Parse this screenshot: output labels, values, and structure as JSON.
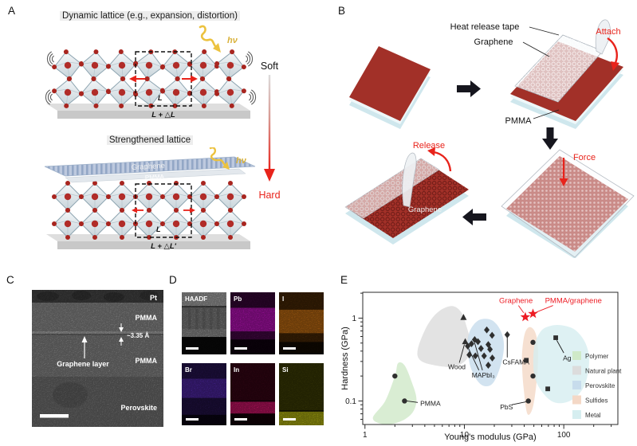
{
  "colors": {
    "accent_red": "#e8231b",
    "star_red": "#ed1c24",
    "sample_red": "#a23028",
    "substrate_blue": "#cfe7ed",
    "atom_red": "#b12c28",
    "graphene_sheet_blue": "#b9c6dc"
  },
  "panel_a": {
    "label": "A",
    "title_top": "Dynamic lattice (e.g., expansion, distortion)",
    "title_bottom": "Strengthened lattice",
    "soft": "Soft",
    "hard": "Hard",
    "hv": "hν",
    "graphene_label": "Graphene",
    "pmma_label": "PMMA",
    "cell_l": "L",
    "cell_l2": "L",
    "expansion_top": "L + △L",
    "expansion_bottom": "L + △L'"
  },
  "panel_b": {
    "label": "B",
    "heat_release_tape": "Heat release tape",
    "graphene": "Graphene",
    "pmma": "PMMA",
    "attach": "Attach",
    "force": "Force",
    "release": "Release",
    "graphene_film": "Graphene"
  },
  "panel_c": {
    "label": "C",
    "pt": "Pt",
    "pmma_top": "PMMA",
    "d_spacing": "~3.35 Å",
    "graphene_layer": "Graphene layer",
    "pmma_bottom": "PMMA",
    "perovskite": "Perovskite"
  },
  "panel_d": {
    "label": "D",
    "tiles": [
      {
        "label": "HAADF",
        "bg": "#141414",
        "cols": true,
        "bands": [
          {
            "y": 0,
            "h": 0.22,
            "c": "#c6c6c6",
            "o": 1
          },
          {
            "y": 0.22,
            "h": 0.025,
            "c": "#5e5e5e",
            "o": 1
          },
          {
            "y": 0.245,
            "h": 0.345,
            "c": "#9a9a9a",
            "o": 1
          },
          {
            "y": 0.59,
            "h": 0.13,
            "c": "#b0b0b0",
            "o": 1
          },
          {
            "y": 0.72,
            "h": 0.28,
            "c": "#0c0c0c",
            "o": 1
          }
        ]
      },
      {
        "label": "Pb",
        "bg": "#120212",
        "cols": false,
        "bands": [
          {
            "y": 0,
            "h": 0.25,
            "c": "#cc17cc",
            "o": 0.25
          },
          {
            "y": 0.25,
            "h": 0.38,
            "c": "#dd16dd",
            "o": 0.95
          },
          {
            "y": 0.63,
            "h": 0.13,
            "c": "#cc17cc",
            "o": 0.35
          }
        ]
      },
      {
        "label": "I",
        "bg": "#160d02",
        "cols": false,
        "bands": [
          {
            "y": 0,
            "h": 0.28,
            "c": "#dd7b14",
            "o": 0.3
          },
          {
            "y": 0.28,
            "h": 0.38,
            "c": "#e28016",
            "o": 0.95
          },
          {
            "y": 0.66,
            "h": 0.14,
            "c": "#dd7b14",
            "o": 0.3
          }
        ]
      },
      {
        "label": "Br",
        "bg": "#0c0617",
        "cols": false,
        "bands": [
          {
            "y": 0,
            "h": 0.25,
            "c": "#6a38da",
            "o": 0.35
          },
          {
            "y": 0.25,
            "h": 0.31,
            "c": "#6d36e2",
            "o": 0.8
          },
          {
            "y": 0.56,
            "h": 0.27,
            "c": "#6a38da",
            "o": 0.3
          }
        ]
      },
      {
        "label": "In",
        "bg": "#170209",
        "cols": false,
        "bands": [
          {
            "y": 0,
            "h": 0.6,
            "c": "#a81245",
            "o": 0.28
          },
          {
            "y": 0.62,
            "h": 0.19,
            "c": "#f0187b",
            "o": 0.95
          }
        ]
      },
      {
        "label": "Si",
        "bg": "#131302",
        "cols": false,
        "bands": [
          {
            "y": 0,
            "h": 0.76,
            "c": "#b9b911",
            "o": 0.3
          },
          {
            "y": 0.78,
            "h": 0.22,
            "c": "#d6d615",
            "o": 0.95
          }
        ]
      }
    ]
  },
  "panel_e": {
    "label": "E"
  },
  "chart_data": {
    "type": "scatter",
    "xlabel": "Young's modulus (GPa)",
    "ylabel": "Hardness (GPa)",
    "xscale": "log",
    "yscale": "log",
    "xlim": [
      0.95,
      350
    ],
    "ylim": [
      0.052,
      2.05
    ],
    "xticks": [
      1,
      10,
      100
    ],
    "yticks": [
      1,
      0.1
    ],
    "grid": false,
    "legend_position": "inside-right",
    "marker_color": "#2f2f2f",
    "star_color": "#ed1c24",
    "legend": [
      {
        "label": "Polymer",
        "color": "#cfe9c8"
      },
      {
        "label": "Natural plant",
        "color": "#dcdcdc"
      },
      {
        "label": "Perovskite",
        "color": "#c7dcec"
      },
      {
        "label": "Sulfides",
        "color": "#f4d8c6"
      },
      {
        "label": "Metal",
        "color": "#d6eef0"
      }
    ],
    "regions": [
      {
        "name": "Polymer",
        "color": "#cfe9c8",
        "points": [
          [
            1.2,
            0.062
          ],
          [
            1.6,
            0.1
          ],
          [
            2.0,
            0.2
          ],
          [
            2.15,
            0.285
          ],
          [
            2.5,
            0.27
          ],
          [
            2.95,
            0.17
          ],
          [
            3.3,
            0.105
          ],
          [
            3.0,
            0.072
          ],
          [
            2.3,
            0.057
          ],
          [
            1.6,
            0.052
          ]
        ]
      },
      {
        "name": "Natural plant",
        "color": "#dcdcdc",
        "points": [
          [
            3.4,
            0.42
          ],
          [
            4.2,
            0.8
          ],
          [
            5.5,
            1.2
          ],
          [
            7.5,
            1.4
          ],
          [
            9.3,
            1.18
          ],
          [
            10.5,
            0.8
          ],
          [
            11.5,
            0.5
          ],
          [
            10.8,
            0.33
          ],
          [
            8.0,
            0.26
          ],
          [
            5.0,
            0.27
          ],
          [
            3.6,
            0.31
          ]
        ]
      },
      {
        "name": "Perovskite",
        "color": "#c7dcec",
        "points": [
          [
            10.8,
            0.5
          ],
          [
            11.5,
            0.72
          ],
          [
            13.5,
            0.92
          ],
          [
            16.5,
            0.98
          ],
          [
            20.0,
            0.9
          ],
          [
            23.5,
            0.68
          ],
          [
            25.0,
            0.45
          ],
          [
            23.0,
            0.26
          ],
          [
            19.0,
            0.16
          ],
          [
            14.5,
            0.16
          ],
          [
            11.5,
            0.26
          ]
        ]
      },
      {
        "name": "Sulfides",
        "color": "#f4d8c6",
        "points": [
          [
            38.5,
            0.45
          ],
          [
            41,
            0.68
          ],
          [
            46,
            0.78
          ],
          [
            52,
            0.66
          ],
          [
            55,
            0.42
          ],
          [
            54,
            0.2
          ],
          [
            49,
            0.085
          ],
          [
            43,
            0.07
          ],
          [
            39.5,
            0.14
          ],
          [
            38,
            0.28
          ]
        ]
      },
      {
        "name": "Metal",
        "color": "#d6eef0",
        "points": [
          [
            50,
            0.42
          ],
          [
            58,
            0.68
          ],
          [
            72,
            0.8
          ],
          [
            95,
            0.82
          ],
          [
            130,
            0.72
          ],
          [
            165,
            0.5
          ],
          [
            180,
            0.3
          ],
          [
            160,
            0.15
          ],
          [
            115,
            0.1
          ],
          [
            75,
            0.1
          ],
          [
            52,
            0.18
          ]
        ]
      }
    ],
    "series": [
      {
        "name": "Polymer",
        "marker": "circle",
        "points": [
          [
            2.0,
            0.2
          ],
          [
            2.5,
            0.1
          ]
        ]
      },
      {
        "name": "Natural plant",
        "marker": "triangle",
        "points": [
          [
            9.8,
            1.02
          ],
          [
            10.2,
            0.52
          ]
        ]
      },
      {
        "name": "Perovskite MAPbI₃",
        "marker": "diamond",
        "points": [
          [
            16.8,
            0.72
          ],
          [
            19,
            0.62
          ],
          [
            12.7,
            0.55
          ],
          [
            13.7,
            0.52
          ],
          [
            11.8,
            0.49
          ],
          [
            10.8,
            0.46
          ],
          [
            17.4,
            0.48
          ],
          [
            14.7,
            0.43
          ],
          [
            18.1,
            0.42
          ],
          [
            11.2,
            0.36
          ],
          [
            12.9,
            0.35
          ],
          [
            15.8,
            0.35
          ],
          [
            19.1,
            0.33
          ],
          [
            17.4,
            0.27
          ]
        ]
      },
      {
        "name": "Perovskite CsFAMA",
        "marker": "diamond",
        "points": [
          [
            27,
            0.63
          ]
        ]
      },
      {
        "name": "Sulfides",
        "marker": "circle",
        "points": [
          [
            49,
            0.51
          ],
          [
            49,
            0.2
          ],
          [
            44,
            0.1
          ]
        ]
      },
      {
        "name": "Metal",
        "marker": "square",
        "points": [
          [
            83,
            0.58
          ],
          [
            69,
            0.14
          ],
          [
            42,
            0.31
          ]
        ]
      },
      {
        "name": "Graphene",
        "marker": "star",
        "color": "#ed1c24",
        "points": [
          [
            41,
            1.03
          ]
        ]
      },
      {
        "name": "PMMA/graphene",
        "marker": "star",
        "color": "#ed1c24",
        "points": [
          [
            49,
            1.13
          ]
        ]
      }
    ],
    "annotations": [
      {
        "text": "PMMA",
        "color": "#1a1a1a",
        "fs": 8.5,
        "anchor": "start",
        "at": [
          3.6,
          0.094
        ],
        "lines": [
          [
            [
              2.62,
              0.1
            ],
            [
              3.4,
              0.096
            ]
          ]
        ]
      },
      {
        "text": "Wood",
        "color": "#1a1a1a",
        "fs": 8.5,
        "anchor": "middle",
        "at": [
          8.4,
          0.26
        ],
        "lines": [
          [
            [
              8.9,
              0.29
            ],
            [
              10.0,
              0.48
            ]
          ]
        ]
      },
      {
        "text": "MAPbI₃",
        "color": "#1a1a1a",
        "fs": 8.5,
        "anchor": "middle",
        "at": [
          15.5,
          0.205
        ],
        "lines": [
          [
            [
              14.0,
              0.235
            ],
            [
              11.0,
              0.43
            ]
          ],
          [
            [
              15.2,
              0.235
            ],
            [
              12.7,
              0.5
            ]
          ]
        ]
      },
      {
        "text": "CsFAMA",
        "color": "#1a1a1a",
        "fs": 8.5,
        "anchor": "middle",
        "at": [
          33,
          0.295
        ],
        "lines": [
          [
            [
              27,
              0.335
            ],
            [
              27,
              0.58
            ]
          ]
        ]
      },
      {
        "text": "PbS",
        "color": "#1a1a1a",
        "fs": 8.5,
        "anchor": "middle",
        "at": [
          26.5,
          0.085
        ],
        "lines": [
          [
            [
              30,
              0.09
            ],
            [
              42.5,
              0.098
            ]
          ]
        ]
      },
      {
        "text": "Ag",
        "color": "#1a1a1a",
        "fs": 8.5,
        "anchor": "middle",
        "at": [
          108,
          0.33
        ],
        "lines": [
          [
            [
              100,
              0.38
            ],
            [
              85,
              0.54
            ]
          ]
        ]
      },
      {
        "text": "Graphene",
        "color": "#ed1c24",
        "fs": 9.5,
        "anchor": "middle",
        "at": [
          33,
          1.62
        ],
        "lines": [
          [
            [
              35,
              1.42
            ],
            [
              39.5,
              1.16
            ]
          ]
        ]
      },
      {
        "text": "PMMA/graphene",
        "color": "#ed1c24",
        "fs": 9.5,
        "anchor": "middle",
        "at": [
          125,
          1.62
        ],
        "lines": [
          [
            [
              78,
              1.42
            ],
            [
              53,
              1.18
            ]
          ]
        ]
      }
    ]
  }
}
